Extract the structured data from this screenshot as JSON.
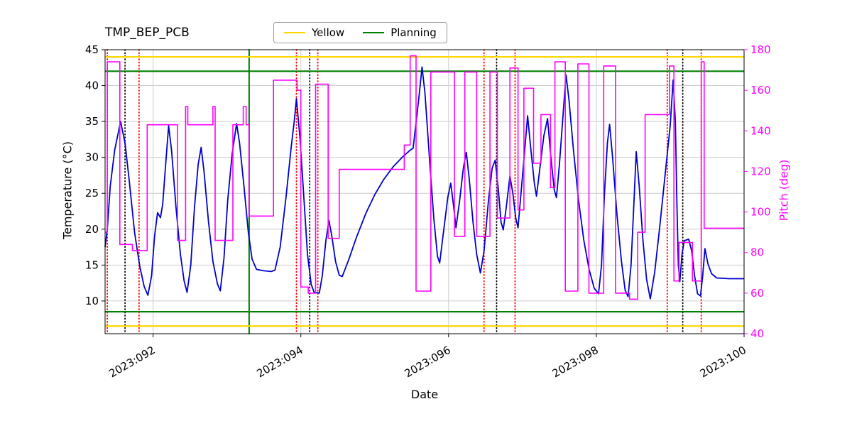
{
  "title": "TMP_BEP_PCB",
  "legend": {
    "items": [
      {
        "label": "Yellow",
        "color": "#ffd700"
      },
      {
        "label": "Planning",
        "color": "#008000"
      }
    ]
  },
  "axis_labels": {
    "x": "Date",
    "y_left": "Temperature (°C)",
    "y_right": "Pitch (deg)"
  },
  "chart_data": {
    "type": "line",
    "title": "TMP_BEP_PCB",
    "xlabel": "Date",
    "ylabel_left": "Temperature (°C)",
    "ylabel_right": "Pitch (deg)",
    "grid": true,
    "grid_color": "#cccccc",
    "legend_position": "upper center",
    "xlim": [
      91.35,
      100
    ],
    "ylim_left": [
      5.44,
      45
    ],
    "ylim_right": [
      40,
      180
    ],
    "x_ticks": [
      {
        "day": 92,
        "label": "2023:092"
      },
      {
        "day": 94,
        "label": "2023:094"
      },
      {
        "day": 96,
        "label": "2023:096"
      },
      {
        "day": 98,
        "label": "2023:098"
      },
      {
        "day": 100,
        "label": "2023:100"
      }
    ],
    "y_ticks_left": [
      10,
      15,
      20,
      25,
      30,
      35,
      40,
      45
    ],
    "y_ticks_right": [
      40,
      60,
      80,
      100,
      120,
      140,
      160,
      180
    ],
    "hlines": [
      {
        "name": "yellow-high",
        "y": 44.0,
        "color": "#ffd700"
      },
      {
        "name": "yellow-low",
        "y": 6.5,
        "color": "#ffd700"
      },
      {
        "name": "planning-high",
        "y": 42.0,
        "color": "#008000"
      },
      {
        "name": "planning-low",
        "y": 8.5,
        "color": "#008000"
      }
    ],
    "vlines": [
      {
        "name": "planning",
        "x": 93.3,
        "color": "#008000",
        "style": "solid"
      },
      {
        "name": "red-1",
        "x": 91.38,
        "color": "#ff0000",
        "style": "dotted"
      },
      {
        "name": "black-1",
        "x": 91.62,
        "color": "#000000",
        "style": "dotted"
      },
      {
        "name": "red-2",
        "x": 91.81,
        "color": "#ff0000",
        "style": "dotted"
      },
      {
        "name": "red-3",
        "x": 93.94,
        "color": "#ff0000",
        "style": "dotted"
      },
      {
        "name": "black-2",
        "x": 94.12,
        "color": "#000000",
        "style": "dotted"
      },
      {
        "name": "red-4",
        "x": 94.23,
        "color": "#ff0000",
        "style": "dotted"
      },
      {
        "name": "red-5",
        "x": 96.48,
        "color": "#ff0000",
        "style": "dotted"
      },
      {
        "name": "black-3",
        "x": 96.65,
        "color": "#000000",
        "style": "dotted"
      },
      {
        "name": "red-6",
        "x": 96.9,
        "color": "#ff0000",
        "style": "dotted"
      },
      {
        "name": "red-7",
        "x": 98.96,
        "color": "#ff0000",
        "style": "dotted"
      },
      {
        "name": "black-4",
        "x": 99.17,
        "color": "#000000",
        "style": "dotted"
      },
      {
        "name": "red-8",
        "x": 99.42,
        "color": "#ff0000",
        "style": "dotted"
      }
    ],
    "series": [
      {
        "name": "Temperature",
        "axis": "left",
        "color": "#0000cd",
        "width": 1.8,
        "points": [
          [
            91.35,
            17.5
          ],
          [
            91.38,
            20.0
          ],
          [
            91.42,
            26.0
          ],
          [
            91.48,
            31.0
          ],
          [
            91.56,
            35.0
          ],
          [
            91.62,
            32.0
          ],
          [
            91.68,
            26.5
          ],
          [
            91.75,
            19.5
          ],
          [
            91.82,
            14.8
          ],
          [
            91.88,
            12.0
          ],
          [
            91.93,
            10.8
          ],
          [
            91.98,
            13.5
          ],
          [
            92.02,
            19.0
          ],
          [
            92.06,
            22.3
          ],
          [
            92.1,
            21.6
          ],
          [
            92.13,
            23.5
          ],
          [
            92.17,
            29.0
          ],
          [
            92.21,
            34.4
          ],
          [
            92.25,
            31.0
          ],
          [
            92.31,
            23.0
          ],
          [
            92.37,
            16.5
          ],
          [
            92.42,
            12.8
          ],
          [
            92.46,
            11.2
          ],
          [
            92.51,
            15.0
          ],
          [
            92.56,
            23.0
          ],
          [
            92.61,
            29.0
          ],
          [
            92.65,
            31.4
          ],
          [
            92.69,
            28.0
          ],
          [
            92.75,
            21.0
          ],
          [
            92.81,
            15.5
          ],
          [
            92.87,
            12.4
          ],
          [
            92.91,
            11.4
          ],
          [
            92.96,
            16.0
          ],
          [
            93.01,
            24.0
          ],
          [
            93.07,
            30.5
          ],
          [
            93.13,
            34.7
          ],
          [
            93.17,
            32.0
          ],
          [
            93.23,
            26.0
          ],
          [
            93.29,
            19.5
          ],
          [
            93.34,
            15.8
          ],
          [
            93.4,
            14.4
          ],
          [
            93.5,
            14.2
          ],
          [
            93.6,
            14.1
          ],
          [
            93.65,
            14.3
          ],
          [
            93.72,
            17.5
          ],
          [
            93.8,
            24.5
          ],
          [
            93.87,
            31.5
          ],
          [
            93.91,
            35.0
          ],
          [
            93.94,
            38.2
          ],
          [
            93.99,
            32.5
          ],
          [
            94.04,
            24.5
          ],
          [
            94.09,
            16.5
          ],
          [
            94.14,
            12.3
          ],
          [
            94.18,
            11.2
          ],
          [
            94.25,
            11.1
          ],
          [
            94.29,
            13.5
          ],
          [
            94.34,
            18.5
          ],
          [
            94.38,
            21.2
          ],
          [
            94.42,
            19.0
          ],
          [
            94.47,
            15.5
          ],
          [
            94.52,
            13.6
          ],
          [
            94.56,
            13.4
          ],
          [
            94.65,
            15.8
          ],
          [
            94.75,
            18.8
          ],
          [
            94.88,
            22.2
          ],
          [
            95.0,
            24.8
          ],
          [
            95.12,
            26.9
          ],
          [
            95.25,
            28.7
          ],
          [
            95.38,
            30.1
          ],
          [
            95.48,
            31.0
          ],
          [
            95.52,
            31.3
          ],
          [
            95.55,
            34.0
          ],
          [
            95.6,
            38.5
          ],
          [
            95.64,
            42.6
          ],
          [
            95.68,
            39.0
          ],
          [
            95.74,
            30.0
          ],
          [
            95.8,
            21.5
          ],
          [
            95.85,
            16.2
          ],
          [
            95.88,
            15.3
          ],
          [
            95.93,
            19.5
          ],
          [
            95.99,
            24.5
          ],
          [
            96.03,
            26.4
          ],
          [
            96.07,
            23.0
          ],
          [
            96.1,
            20.2
          ],
          [
            96.15,
            24.0
          ],
          [
            96.2,
            28.5
          ],
          [
            96.24,
            30.7
          ],
          [
            96.28,
            27.0
          ],
          [
            96.33,
            21.0
          ],
          [
            96.38,
            16.5
          ],
          [
            96.43,
            13.9
          ],
          [
            96.48,
            17.0
          ],
          [
            96.54,
            24.0
          ],
          [
            96.59,
            28.5
          ],
          [
            96.63,
            29.6
          ],
          [
            96.67,
            26.0
          ],
          [
            96.71,
            21.0
          ],
          [
            96.74,
            19.9
          ],
          [
            96.78,
            23.0
          ],
          [
            96.83,
            27.4
          ],
          [
            96.87,
            25.0
          ],
          [
            96.91,
            21.5
          ],
          [
            96.94,
            20.2
          ],
          [
            96.98,
            25.0
          ],
          [
            97.03,
            31.0
          ],
          [
            97.07,
            35.8
          ],
          [
            97.11,
            31.5
          ],
          [
            97.16,
            26.5
          ],
          [
            97.19,
            24.6
          ],
          [
            97.23,
            28.0
          ],
          [
            97.29,
            33.0
          ],
          [
            97.34,
            35.4
          ],
          [
            97.38,
            30.5
          ],
          [
            97.43,
            25.5
          ],
          [
            97.46,
            24.4
          ],
          [
            97.5,
            29.0
          ],
          [
            97.55,
            36.0
          ],
          [
            97.59,
            41.5
          ],
          [
            97.63,
            38.0
          ],
          [
            97.69,
            31.0
          ],
          [
            97.76,
            24.0
          ],
          [
            97.83,
            18.5
          ],
          [
            97.9,
            14.5
          ],
          [
            97.97,
            11.8
          ],
          [
            98.03,
            11.0
          ],
          [
            98.07,
            15.0
          ],
          [
            98.11,
            25.0
          ],
          [
            98.15,
            32.0
          ],
          [
            98.18,
            34.6
          ],
          [
            98.22,
            30.0
          ],
          [
            98.28,
            22.0
          ],
          [
            98.34,
            15.5
          ],
          [
            98.39,
            11.5
          ],
          [
            98.43,
            10.6
          ],
          [
            98.47,
            15.0
          ],
          [
            98.51,
            24.0
          ],
          [
            98.54,
            30.8
          ],
          [
            98.58,
            26.0
          ],
          [
            98.63,
            18.5
          ],
          [
            98.68,
            13.0
          ],
          [
            98.73,
            10.3
          ],
          [
            98.79,
            14.0
          ],
          [
            98.86,
            20.5
          ],
          [
            98.93,
            27.5
          ],
          [
            99.0,
            34.5
          ],
          [
            99.04,
            40.8
          ],
          [
            99.07,
            35.0
          ],
          [
            99.09,
            24.0
          ],
          [
            99.11,
            15.0
          ],
          [
            99.13,
            12.7
          ],
          [
            99.16,
            16.5
          ],
          [
            99.19,
            18.4
          ],
          [
            99.25,
            18.6
          ],
          [
            99.29,
            17.0
          ],
          [
            99.33,
            13.5
          ],
          [
            99.37,
            11.0
          ],
          [
            99.41,
            10.7
          ],
          [
            99.44,
            13.5
          ],
          [
            99.47,
            17.3
          ],
          [
            99.51,
            15.2
          ],
          [
            99.56,
            13.8
          ],
          [
            99.63,
            13.2
          ],
          [
            99.8,
            13.1
          ],
          [
            100.0,
            13.1
          ]
        ]
      },
      {
        "name": "Pitch",
        "axis": "right",
        "color": "#ff00ff",
        "width": 1.6,
        "points": [
          [
            91.35,
            90
          ],
          [
            91.38,
            90
          ],
          [
            91.38,
            174
          ],
          [
            91.55,
            174
          ],
          [
            91.55,
            84
          ],
          [
            91.72,
            84
          ],
          [
            91.72,
            81
          ],
          [
            91.92,
            81
          ],
          [
            91.92,
            143
          ],
          [
            92.33,
            143
          ],
          [
            92.33,
            86
          ],
          [
            92.44,
            86
          ],
          [
            92.44,
            152
          ],
          [
            92.47,
            152
          ],
          [
            92.47,
            143
          ],
          [
            92.81,
            143
          ],
          [
            92.81,
            152
          ],
          [
            92.84,
            152
          ],
          [
            92.84,
            86
          ],
          [
            93.08,
            86
          ],
          [
            93.08,
            143
          ],
          [
            93.22,
            143
          ],
          [
            93.22,
            152
          ],
          [
            93.26,
            152
          ],
          [
            93.26,
            143
          ],
          [
            93.3,
            143
          ],
          [
            93.3,
            98
          ],
          [
            93.63,
            98
          ],
          [
            93.63,
            165
          ],
          [
            93.95,
            165
          ],
          [
            93.95,
            160
          ],
          [
            94.0,
            160
          ],
          [
            94.0,
            63
          ],
          [
            94.1,
            63
          ],
          [
            94.1,
            60
          ],
          [
            94.2,
            60
          ],
          [
            94.2,
            163
          ],
          [
            94.37,
            163
          ],
          [
            94.37,
            87
          ],
          [
            94.52,
            87
          ],
          [
            94.52,
            121
          ],
          [
            95.4,
            121
          ],
          [
            95.4,
            133
          ],
          [
            95.48,
            133
          ],
          [
            95.48,
            177
          ],
          [
            95.56,
            177
          ],
          [
            95.56,
            61
          ],
          [
            95.76,
            61
          ],
          [
            95.76,
            169
          ],
          [
            96.08,
            169
          ],
          [
            96.08,
            88
          ],
          [
            96.22,
            88
          ],
          [
            96.22,
            169
          ],
          [
            96.38,
            169
          ],
          [
            96.38,
            88
          ],
          [
            96.56,
            88
          ],
          [
            96.56,
            169
          ],
          [
            96.66,
            169
          ],
          [
            96.66,
            97
          ],
          [
            96.83,
            97
          ],
          [
            96.83,
            171
          ],
          [
            96.94,
            171
          ],
          [
            96.94,
            101
          ],
          [
            97.02,
            101
          ],
          [
            97.02,
            161
          ],
          [
            97.15,
            161
          ],
          [
            97.15,
            124
          ],
          [
            97.25,
            124
          ],
          [
            97.25,
            148
          ],
          [
            97.38,
            148
          ],
          [
            97.38,
            112
          ],
          [
            97.44,
            112
          ],
          [
            97.44,
            174
          ],
          [
            97.58,
            174
          ],
          [
            97.58,
            61
          ],
          [
            97.75,
            61
          ],
          [
            97.75,
            173
          ],
          [
            97.9,
            173
          ],
          [
            97.9,
            60
          ],
          [
            98.1,
            60
          ],
          [
            98.1,
            172
          ],
          [
            98.26,
            172
          ],
          [
            98.26,
            60
          ],
          [
            98.45,
            60
          ],
          [
            98.45,
            57
          ],
          [
            98.56,
            57
          ],
          [
            98.56,
            90
          ],
          [
            98.66,
            90
          ],
          [
            98.66,
            148
          ],
          [
            98.99,
            148
          ],
          [
            98.99,
            172
          ],
          [
            99.05,
            172
          ],
          [
            99.05,
            66
          ],
          [
            99.12,
            66
          ],
          [
            99.12,
            85
          ],
          [
            99.3,
            85
          ],
          [
            99.3,
            66
          ],
          [
            99.42,
            66
          ],
          [
            99.42,
            174
          ],
          [
            99.46,
            174
          ],
          [
            99.46,
            92
          ],
          [
            100.0,
            92
          ]
        ]
      }
    ]
  }
}
